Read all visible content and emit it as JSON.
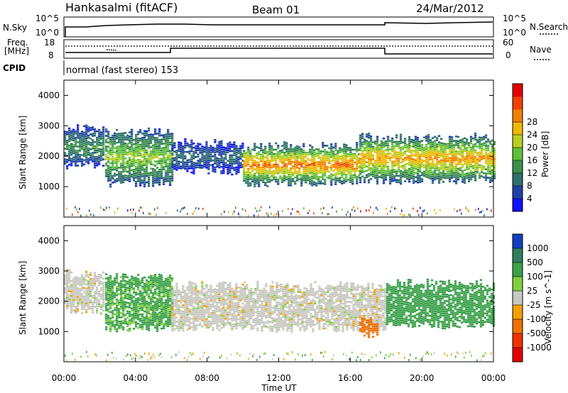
{
  "header": {
    "station": "Hankasalmi (fitACF)",
    "beam": "Beam 01",
    "date": "24/Mar/2012"
  },
  "noise_panel": {
    "left_label": "N.Sky",
    "right_label": "N.Search",
    "left_ticks": [
      "10^5",
      "10^0"
    ],
    "right_ticks": [
      "10^5",
      "10^0"
    ]
  },
  "freq_panel": {
    "left_label_1": "Freq.",
    "left_label_2": "[MHz]",
    "right_label": "Nave",
    "left_ticks": [
      "18",
      "8"
    ],
    "right_ticks": [
      "60",
      "0"
    ]
  },
  "cpid": {
    "label": "CPID",
    "text": "normal (fast stereo) 153"
  },
  "chart_data": [
    {
      "type": "heatmap",
      "title": "",
      "xlabel": "Time UT",
      "ylabel": "Slant Range [km]",
      "xlim": [
        "00:00",
        "24:00"
      ],
      "ylim": [
        0,
        4500
      ],
      "x_ticks": [
        "00:00",
        "04:00",
        "08:00",
        "12:00",
        "16:00",
        "20:00",
        "00:00"
      ],
      "y_ticks": [
        "1000",
        "2000",
        "3000",
        "4000"
      ],
      "colorbar_label": "Power [dB]",
      "colorbar_ticks": [
        "4",
        "8",
        "12",
        "16",
        "20",
        "24",
        "28"
      ],
      "colorbar_colors": [
        "#1010ff",
        "#2040a8",
        "#2e6e6e",
        "#3b8f4a",
        "#5fbf3a",
        "#b8cf20",
        "#f0b800",
        "#f08000",
        "#f04000",
        "#e00000"
      ],
      "regions": [
        {
          "t": [
            0.0,
            2.2
          ],
          "r": [
            1700,
            2900
          ],
          "level": 9
        },
        {
          "t": [
            2.3,
            6.0
          ],
          "r": [
            1100,
            2800
          ],
          "level": 14
        },
        {
          "t": [
            6.0,
            10.0
          ],
          "r": [
            1500,
            2400
          ],
          "level": 6
        },
        {
          "t": [
            10.0,
            16.5
          ],
          "r": [
            1100,
            2300
          ],
          "level": 22
        },
        {
          "t": [
            16.5,
            24.0
          ],
          "r": [
            1200,
            2600
          ],
          "level": 20
        }
      ]
    },
    {
      "type": "heatmap",
      "title": "",
      "xlabel": "Time UT",
      "ylabel": "Slant Range [km]",
      "xlim": [
        "00:00",
        "24:00"
      ],
      "ylim": [
        0,
        4500
      ],
      "x_ticks": [
        "00:00",
        "04:00",
        "08:00",
        "12:00",
        "16:00",
        "20:00",
        "00:00"
      ],
      "y_ticks": [
        "1000",
        "2000",
        "3000",
        "4000"
      ],
      "colorbar_label": "Velocity [m s^-1]",
      "colorbar_ticks": [
        "1000",
        "500",
        "100",
        "25",
        "-25",
        "-100",
        "-500",
        "-1000"
      ],
      "colorbar_colors": [
        "#1040c0",
        "#2e7d5e",
        "#3ba04a",
        "#7fd040",
        "#c8c8c0",
        "#f0a000",
        "#f07000",
        "#f03000",
        "#e00000"
      ],
      "regions": [
        {
          "t": [
            0.0,
            2.2
          ],
          "r": [
            1700,
            2900
          ],
          "v": 0
        },
        {
          "t": [
            2.3,
            6.0
          ],
          "r": [
            1100,
            2800
          ],
          "v": 150
        },
        {
          "t": [
            6.0,
            18.0
          ],
          "r": [
            1100,
            2500
          ],
          "v": 0
        },
        {
          "t": [
            16.5,
            17.5
          ],
          "r": [
            900,
            1400
          ],
          "v": -300
        },
        {
          "t": [
            18.0,
            24.0
          ],
          "r": [
            1200,
            2600
          ],
          "v": 300
        }
      ]
    }
  ]
}
